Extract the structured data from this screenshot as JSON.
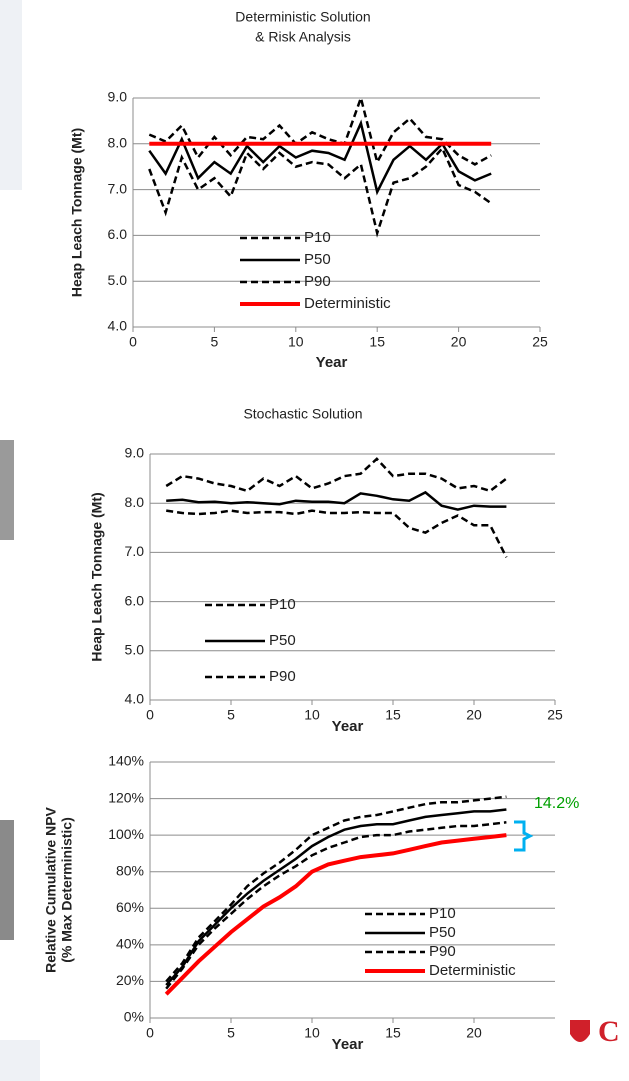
{
  "chart_data": [
    {
      "type": "line",
      "title": [
        "Deterministic Solution",
        "& Risk Analysis"
      ],
      "xlabel": "Year",
      "ylabel": "Heap Leach Tonnage (Mt)",
      "x": [
        1,
        2,
        3,
        4,
        5,
        6,
        7,
        8,
        9,
        10,
        11,
        12,
        13,
        14,
        15,
        16,
        17,
        18,
        19,
        20,
        21,
        22
      ],
      "series": [
        {
          "name": "P10",
          "color": "#000000",
          "dash": true,
          "values": [
            8.2,
            8.05,
            8.4,
            7.7,
            8.15,
            7.75,
            8.15,
            8.1,
            8.4,
            8.0,
            8.25,
            8.1,
            8.0,
            9.0,
            7.6,
            8.25,
            8.55,
            8.15,
            8.1,
            7.75,
            7.55,
            7.75
          ]
        },
        {
          "name": "P50",
          "color": "#000000",
          "dash": false,
          "values": [
            7.85,
            7.35,
            8.1,
            7.25,
            7.6,
            7.35,
            7.95,
            7.6,
            7.95,
            7.7,
            7.85,
            7.8,
            7.65,
            8.45,
            6.95,
            7.65,
            7.95,
            7.65,
            8.0,
            7.4,
            7.2,
            7.35
          ]
        },
        {
          "name": "P90",
          "color": "#000000",
          "dash": true,
          "values": [
            7.45,
            6.5,
            7.7,
            7.0,
            7.25,
            6.85,
            7.8,
            7.45,
            7.8,
            7.5,
            7.6,
            7.55,
            7.25,
            7.55,
            6.05,
            7.15,
            7.25,
            7.5,
            7.9,
            7.1,
            6.95,
            6.7
          ]
        },
        {
          "name": "Deterministic",
          "color": "#ff0000",
          "dash": false,
          "values": [
            8,
            8,
            8,
            8,
            8,
            8,
            8,
            8,
            8,
            8,
            8,
            8,
            8,
            8,
            8,
            8,
            8,
            8,
            8,
            8,
            8,
            8
          ]
        }
      ],
      "xlim": [
        0,
        25
      ],
      "xticks": [
        0,
        5,
        10,
        15,
        20,
        25
      ],
      "ylim": [
        4,
        9
      ],
      "yticks": [
        {
          "value": 4,
          "label": "4.0"
        },
        {
          "value": 5,
          "label": "5.0"
        },
        {
          "value": 6,
          "label": "6.0"
        },
        {
          "value": 7,
          "label": "7.0"
        },
        {
          "value": 8,
          "label": "8.0"
        },
        {
          "value": 9,
          "label": "9.0"
        }
      ],
      "grid": true,
      "legend": "lower center"
    },
    {
      "type": "line",
      "title": [
        "Stochastic Solution"
      ],
      "xlabel": "Year",
      "ylabel": "Heap Leach Tonnage (Mt)",
      "x": [
        1,
        2,
        3,
        4,
        5,
        6,
        7,
        8,
        9,
        10,
        11,
        12,
        13,
        14,
        15,
        16,
        17,
        18,
        19,
        20,
        21,
        22
      ],
      "series": [
        {
          "name": "P10",
          "color": "#000000",
          "dash": true,
          "values": [
            8.35,
            8.55,
            8.5,
            8.4,
            8.35,
            8.25,
            8.5,
            8.35,
            8.55,
            8.3,
            8.4,
            8.55,
            8.6,
            8.9,
            8.55,
            8.6,
            8.6,
            8.5,
            8.3,
            8.35,
            8.25,
            8.5
          ]
        },
        {
          "name": "P50",
          "color": "#000000",
          "dash": false,
          "values": [
            8.05,
            8.07,
            8.02,
            8.03,
            8.0,
            8.02,
            8.0,
            7.98,
            8.05,
            8.03,
            8.03,
            8.0,
            8.2,
            8.15,
            8.08,
            8.05,
            8.22,
            7.95,
            7.87,
            7.95,
            7.93,
            7.93
          ]
        },
        {
          "name": "P90",
          "color": "#000000",
          "dash": true,
          "values": [
            7.85,
            7.8,
            7.78,
            7.8,
            7.85,
            7.8,
            7.82,
            7.82,
            7.78,
            7.85,
            7.8,
            7.8,
            7.82,
            7.8,
            7.8,
            7.5,
            7.4,
            7.6,
            7.75,
            7.55,
            7.55,
            6.9
          ]
        }
      ],
      "xlim": [
        0,
        25
      ],
      "xticks": [
        0,
        5,
        10,
        15,
        20,
        25
      ],
      "ylim": [
        4,
        9
      ],
      "yticks": [
        {
          "value": 4,
          "label": "4.0"
        },
        {
          "value": 5,
          "label": "5.0"
        },
        {
          "value": 6,
          "label": "6.0"
        },
        {
          "value": 7,
          "label": "7.0"
        },
        {
          "value": 8,
          "label": "8.0"
        },
        {
          "value": 9,
          "label": "9.0"
        }
      ],
      "grid": true,
      "legend": "lower left"
    },
    {
      "type": "line",
      "xlabel": "Year",
      "ylabel": [
        "Relative Cumulative NPV",
        "(% Max Deterministic)"
      ],
      "x": [
        1,
        2,
        3,
        4,
        5,
        6,
        7,
        8,
        9,
        10,
        11,
        12,
        13,
        14,
        15,
        16,
        17,
        18,
        19,
        20,
        21,
        22
      ],
      "series": [
        {
          "name": "P10",
          "color": "#000000",
          "dash": true,
          "values": [
            20,
            30,
            44,
            53,
            62,
            72,
            79,
            85,
            92,
            100,
            104,
            108,
            110,
            111,
            113,
            115,
            117,
            118,
            118,
            119,
            120,
            121
          ]
        },
        {
          "name": "P50",
          "color": "#000000",
          "dash": false,
          "values": [
            18,
            28,
            42,
            51,
            60,
            68,
            75,
            81,
            87,
            94,
            99,
            103,
            105,
            106,
            106,
            108,
            110,
            111,
            112,
            113,
            113,
            114
          ]
        },
        {
          "name": "P90",
          "color": "#000000",
          "dash": true,
          "values": [
            16,
            27,
            40,
            49,
            57,
            65,
            72,
            78,
            83,
            89,
            93,
            96,
            99,
            100,
            100,
            102,
            103,
            104,
            105,
            105,
            106,
            107
          ]
        },
        {
          "name": "Deterministic",
          "color": "#ff0000",
          "dash": false,
          "values": [
            13,
            22,
            31,
            39,
            47,
            54,
            61,
            66,
            72,
            80,
            84,
            86,
            88,
            89,
            90,
            92,
            94,
            96,
            97,
            98,
            99,
            100
          ]
        }
      ],
      "xlim": [
        0,
        25
      ],
      "xticks": [
        0,
        5,
        10,
        15,
        20
      ],
      "ylim": [
        0,
        140
      ],
      "yticks": [
        {
          "value": 0,
          "label": "0%"
        },
        {
          "value": 20,
          "label": "20%"
        },
        {
          "value": 40,
          "label": "40%"
        },
        {
          "value": 60,
          "label": "60%"
        },
        {
          "value": 80,
          "label": "80%"
        },
        {
          "value": 100,
          "label": "100%"
        },
        {
          "value": 120,
          "label": "120%"
        },
        {
          "value": 140,
          "label": "140%"
        }
      ],
      "grid": true,
      "legend": "lower right",
      "annotation": "14.2%",
      "annotation_color": "#00a000"
    }
  ]
}
